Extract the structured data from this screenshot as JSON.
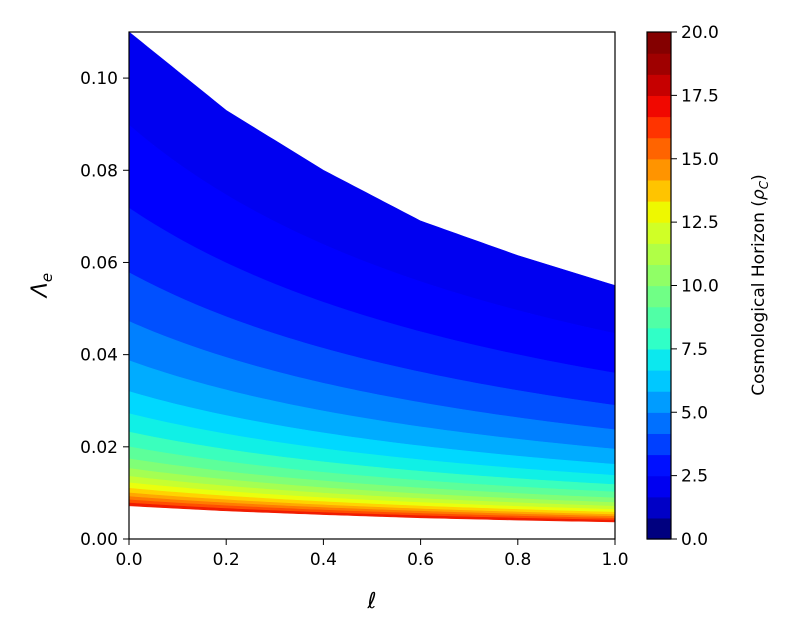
{
  "chart_data": {
    "type": "contourf",
    "xlabel": "ℓ",
    "ylabel": "Λe",
    "ylabel_base": "Λ",
    "ylabel_sub": "e",
    "xlim": [
      0.0,
      1.0
    ],
    "ylim": [
      0.0,
      0.11
    ],
    "x_ticks": [
      0.0,
      0.2,
      0.4,
      0.6,
      0.8,
      1.0
    ],
    "x_tick_labels": [
      "0.0",
      "0.2",
      "0.4",
      "0.6",
      "0.8",
      "1.0"
    ],
    "y_ticks": [
      0.0,
      0.02,
      0.04,
      0.06,
      0.08,
      0.1
    ],
    "y_tick_labels": [
      "0.00",
      "0.02",
      "0.04",
      "0.06",
      "0.08",
      "0.10"
    ],
    "colorbar": {
      "label": "Cosmological Horizon (ρC)",
      "label_main": "Cosmological Horizon (",
      "label_rho": "ρ",
      "label_sub": "C",
      "label_close": ")",
      "range": [
        0.0,
        20.0
      ],
      "ticks": [
        0.0,
        2.5,
        5.0,
        7.5,
        10.0,
        12.5,
        15.0,
        17.5,
        20.0
      ],
      "tick_labels": [
        "0.0",
        "2.5",
        "5.0",
        "7.5",
        "10.0",
        "12.5",
        "15.0",
        "17.5",
        "20.0"
      ],
      "levels": 20,
      "colormap": "jet"
    },
    "region": {
      "lower_boundary": {
        "x": [
          0.0,
          0.2,
          0.4,
          0.6,
          0.8,
          1.0
        ],
        "y": [
          0.0072,
          0.0061,
          0.0053,
          0.0046,
          0.0041,
          0.0037
        ]
      },
      "upper_boundary": {
        "x": [
          0.0,
          0.2,
          0.4,
          0.6,
          0.8,
          1.0
        ],
        "y": [
          0.11,
          0.093,
          0.08,
          0.069,
          0.0615,
          0.055
        ]
      }
    },
    "contour_lines": [
      {
        "value": 2.0,
        "x": [
          0.0,
          1.0
        ],
        "y": [
          0.0898,
          0.0446
        ]
      },
      {
        "value": 3.0,
        "x": [
          0.0,
          1.0
        ],
        "y": [
          0.0718,
          0.036
        ]
      },
      {
        "value": 4.0,
        "x": [
          0.0,
          1.0
        ],
        "y": [
          0.0578,
          0.029
        ]
      },
      {
        "value": 5.0,
        "x": [
          0.0,
          1.0
        ],
        "y": [
          0.0472,
          0.0237
        ]
      },
      {
        "value": 6.0,
        "x": [
          0.0,
          1.0
        ],
        "y": [
          0.0387,
          0.0195
        ]
      },
      {
        "value": 7.0,
        "x": [
          0.0,
          1.0
        ],
        "y": [
          0.032,
          0.0162
        ]
      },
      {
        "value": 8.0,
        "x": [
          0.0,
          1.0
        ],
        "y": [
          0.0272,
          0.0138
        ]
      },
      {
        "value": 9.0,
        "x": [
          0.0,
          1.0
        ],
        "y": [
          0.0232,
          0.0118
        ]
      },
      {
        "value": 10.0,
        "x": [
          0.0,
          1.0
        ],
        "y": [
          0.02,
          0.0102
        ]
      },
      {
        "value": 11.0,
        "x": [
          0.0,
          1.0
        ],
        "y": [
          0.0174,
          0.0089
        ]
      },
      {
        "value": 12.0,
        "x": [
          0.0,
          1.0
        ],
        "y": [
          0.0153,
          0.0079
        ]
      },
      {
        "value": 13.0,
        "x": [
          0.0,
          1.0
        ],
        "y": [
          0.0136,
          0.0071
        ]
      },
      {
        "value": 14.0,
        "x": [
          0.0,
          1.0
        ],
        "y": [
          0.0122,
          0.0064
        ]
      },
      {
        "value": 15.0,
        "x": [
          0.0,
          1.0
        ],
        "y": [
          0.011,
          0.0058
        ]
      },
      {
        "value": 16.0,
        "x": [
          0.0,
          1.0
        ],
        "y": [
          0.01,
          0.0053
        ]
      },
      {
        "value": 17.0,
        "x": [
          0.0,
          1.0
        ],
        "y": [
          0.0092,
          0.0049
        ]
      },
      {
        "value": 18.0,
        "x": [
          0.0,
          1.0
        ],
        "y": [
          0.0085,
          0.0045
        ]
      },
      {
        "value": 19.0,
        "x": [
          0.0,
          1.0
        ],
        "y": [
          0.0078,
          0.0041
        ]
      }
    ],
    "colors": {
      "1": "#0000f1",
      "2": "#0000ff",
      "3": "#0020ff",
      "4": "#0050ff",
      "5": "#0080ff",
      "6": "#00acff",
      "7": "#00d8ff",
      "8": "#10f0e6",
      "9": "#3affbd",
      "10": "#5dff9a",
      "11": "#80ff77",
      "12": "#a4ff53",
      "13": "#c7ff30",
      "14": "#eaff0d",
      "15": "#ffd300",
      "16": "#ffa700",
      "17": "#ff7b00",
      "18": "#ff4f00",
      "19": "#f11c00",
      "20": "#b60000"
    },
    "colorbar_swatches": [
      "#00007f",
      "#0000c6",
      "#0000f1",
      "#0010ff",
      "#0040ff",
      "#0070ff",
      "#009cff",
      "#00c8ff",
      "#0ce8ee",
      "#30ffc7",
      "#50ffa6",
      "#70ff86",
      "#90ff66",
      "#b0ff46",
      "#d0ff26",
      "#eef800",
      "#ffc400",
      "#ff9400",
      "#ff6400",
      "#ff3400",
      "#f10800",
      "#c60000",
      "#9f0000",
      "#840000"
    ],
    "colorbar_order_note": ""
  }
}
